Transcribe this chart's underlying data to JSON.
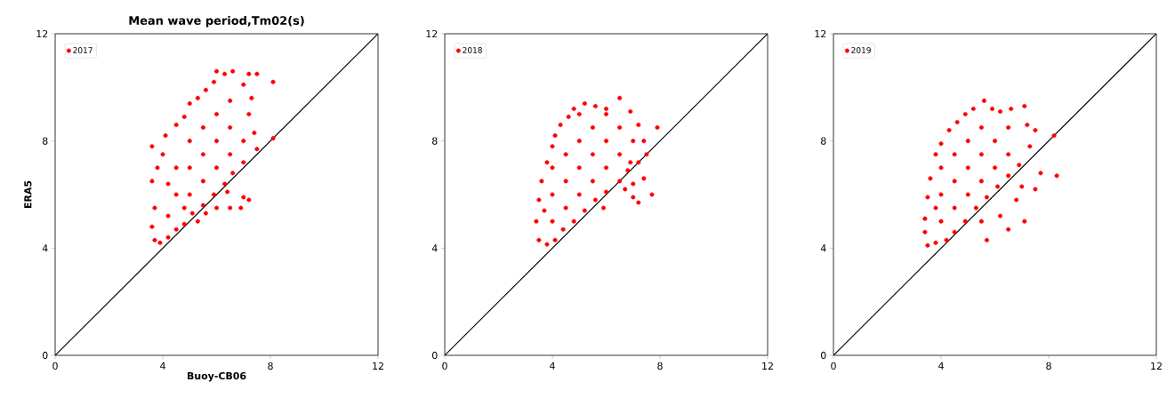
{
  "chart_data": [
    {
      "type": "scatter",
      "title": "Mean wave period,Tm02(s)",
      "xlabel": "Buoy-CB06",
      "ylabel": "ERA5",
      "xlim": [
        0,
        12
      ],
      "ylim": [
        0,
        12
      ],
      "xticks": [
        0,
        4,
        8,
        12
      ],
      "yticks": [
        0,
        4,
        8,
        12
      ],
      "legend": "top left",
      "marker": "circle",
      "series": [
        {
          "name": "2017",
          "color": "#ff0000",
          "x": [
            3.7,
            3.9,
            4.2,
            4.5,
            3.6,
            3.7,
            3.6,
            3.8,
            3.6,
            4.0,
            4.1,
            4.5,
            4.8,
            5.0,
            5.3,
            5.6,
            5.9,
            6.0,
            6.3,
            6.6,
            7.0,
            7.2,
            7.5,
            8.1,
            7.3,
            7.2,
            7.4,
            7.5,
            7.0,
            6.6,
            6.3,
            5.9,
            5.5,
            5.1,
            4.8,
            5.3,
            5.6,
            6.0,
            6.5,
            6.9,
            7.0,
            7.2,
            6.4,
            8.1,
            4.5,
            4.5,
            5.0,
            5.0,
            5.0,
            5.5,
            5.5,
            5.5,
            6.0,
            6.0,
            6.0,
            6.5,
            6.5,
            6.5,
            4.2,
            4.2,
            7.0,
            4.8
          ],
          "values": [
            4.3,
            4.2,
            4.4,
            4.7,
            4.8,
            5.5,
            6.5,
            7.0,
            7.8,
            7.5,
            8.2,
            8.6,
            8.9,
            9.4,
            9.6,
            9.9,
            10.2,
            10.6,
            10.5,
            10.6,
            10.1,
            10.5,
            10.5,
            10.2,
            9.6,
            9.0,
            8.3,
            7.7,
            7.2,
            6.8,
            6.4,
            6.0,
            5.6,
            5.3,
            4.9,
            5.0,
            5.3,
            5.5,
            5.5,
            5.5,
            5.9,
            5.8,
            6.1,
            8.1,
            6.0,
            7.0,
            6.0,
            7.0,
            8.0,
            6.5,
            7.5,
            8.5,
            7.0,
            8.0,
            9.0,
            7.5,
            8.5,
            9.5,
            5.2,
            6.4,
            8.0,
            5.5
          ]
        },
        {
          "type": "line",
          "color": "#000000",
          "x": [
            0,
            12
          ],
          "values": [
            0,
            12
          ],
          "marker": "none"
        }
      ]
    },
    {
      "type": "scatter",
      "xlim": [
        0,
        12
      ],
      "ylim": [
        0,
        12
      ],
      "xticks": [
        0,
        4,
        8,
        12
      ],
      "yticks": [
        0,
        4,
        8,
        12
      ],
      "legend": "top left",
      "marker": "circle",
      "series": [
        {
          "name": "2018",
          "color": "#ff0000",
          "x": [
            3.5,
            3.8,
            4.1,
            4.4,
            3.4,
            3.5,
            3.6,
            3.8,
            4.0,
            4.1,
            4.3,
            4.6,
            4.8,
            5.2,
            5.6,
            6.0,
            6.5,
            6.9,
            7.2,
            7.9,
            7.4,
            7.5,
            7.2,
            6.8,
            6.5,
            6.0,
            5.6,
            5.2,
            4.8,
            5.9,
            6.7,
            7.0,
            7.2,
            7.7,
            7.4,
            7.0,
            6.9,
            4.0,
            4.0,
            4.0,
            4.5,
            4.5,
            4.5,
            5.0,
            5.0,
            5.0,
            5.0,
            5.5,
            5.5,
            5.5,
            6.0,
            6.0,
            6.0,
            6.5,
            6.5,
            7.0,
            3.7
          ],
          "values": [
            4.3,
            4.14,
            4.3,
            4.7,
            5.0,
            5.8,
            6.5,
            7.2,
            7.8,
            8.2,
            8.6,
            8.9,
            9.2,
            9.4,
            9.3,
            9.2,
            9.6,
            9.1,
            8.6,
            8.5,
            8.0,
            7.5,
            7.2,
            6.9,
            6.5,
            6.1,
            5.8,
            5.4,
            5.0,
            5.5,
            6.2,
            6.4,
            5.7,
            6.0,
            6.6,
            5.9,
            7.2,
            5.0,
            6.0,
            7.0,
            5.5,
            6.5,
            7.5,
            6.0,
            7.0,
            8.0,
            9.0,
            6.5,
            7.5,
            8.5,
            7.0,
            8.0,
            9.0,
            7.5,
            8.5,
            8.0,
            5.4
          ]
        },
        {
          "type": "line",
          "color": "#000000",
          "x": [
            0,
            12
          ],
          "values": [
            0,
            12
          ],
          "marker": "none"
        }
      ]
    },
    {
      "type": "scatter",
      "xlim": [
        0,
        12
      ],
      "ylim": [
        0,
        12
      ],
      "xticks": [
        0,
        4,
        8,
        12
      ],
      "yticks": [
        0,
        4,
        8,
        12
      ],
      "legend": "top left",
      "marker": "circle",
      "series": [
        {
          "name": "2019",
          "color": "#ff0000",
          "x": [
            3.5,
            3.8,
            4.2,
            4.5,
            3.4,
            3.4,
            3.5,
            3.6,
            3.8,
            4.0,
            4.3,
            4.6,
            4.9,
            5.2,
            5.6,
            5.9,
            6.2,
            6.6,
            7.1,
            7.2,
            7.5,
            8.2,
            7.3,
            6.9,
            6.5,
            6.1,
            5.7,
            5.3,
            4.9,
            5.7,
            6.5,
            7.1,
            6.2,
            5.5,
            6.8,
            7.0,
            8.3,
            7.7,
            7.5,
            4.0,
            4.0,
            4.0,
            4.5,
            4.5,
            4.5,
            5.0,
            5.0,
            5.0,
            5.5,
            5.5,
            5.5,
            6.0,
            6.0,
            6.5,
            6.5,
            3.8
          ],
          "values": [
            4.1,
            4.2,
            4.3,
            4.6,
            4.6,
            5.1,
            5.9,
            6.6,
            7.5,
            7.9,
            8.4,
            8.7,
            9.0,
            9.2,
            9.5,
            9.2,
            9.1,
            9.2,
            9.3,
            8.6,
            8.4,
            8.2,
            7.8,
            7.1,
            6.7,
            6.3,
            5.9,
            5.5,
            5.0,
            4.3,
            4.7,
            5.0,
            5.2,
            5.0,
            5.8,
            6.3,
            6.7,
            6.8,
            6.2,
            5.0,
            6.0,
            7.0,
            5.5,
            6.5,
            7.5,
            6.0,
            7.0,
            8.0,
            6.5,
            7.5,
            8.5,
            7.0,
            8.0,
            7.5,
            8.5,
            5.5
          ]
        },
        {
          "type": "line",
          "color": "#000000",
          "x": [
            0,
            12
          ],
          "values": [
            0,
            12
          ],
          "marker": "none"
        }
      ]
    }
  ]
}
